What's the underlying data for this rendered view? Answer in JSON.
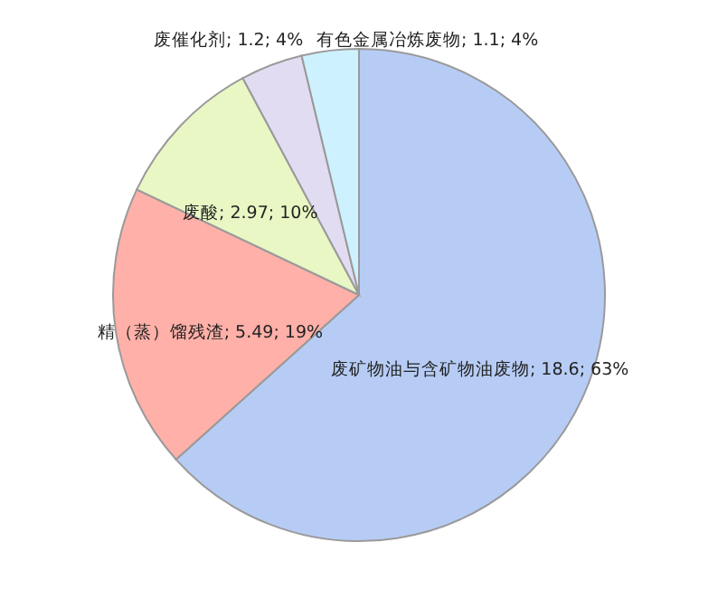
{
  "chart_data": {
    "type": "pie",
    "categories": [
      "废矿物油与含矿物油废物",
      "精（蒸）馏残渣",
      "废酸",
      "废催化剂",
      "有色金属冶炼废物"
    ],
    "values": [
      18.6,
      5.49,
      2.97,
      1.2,
      1.1
    ],
    "value_labels": [
      "; 18.6; 63%",
      "; 5.49; 19%",
      "; 2.97; 10%",
      "; 1.2; 4%",
      "; 1.1; 4%"
    ],
    "colors": [
      "#b7ccf5",
      "#ffb0a8",
      "#e8f7c4",
      "#e2dcf2",
      "#cdf1ff"
    ]
  }
}
